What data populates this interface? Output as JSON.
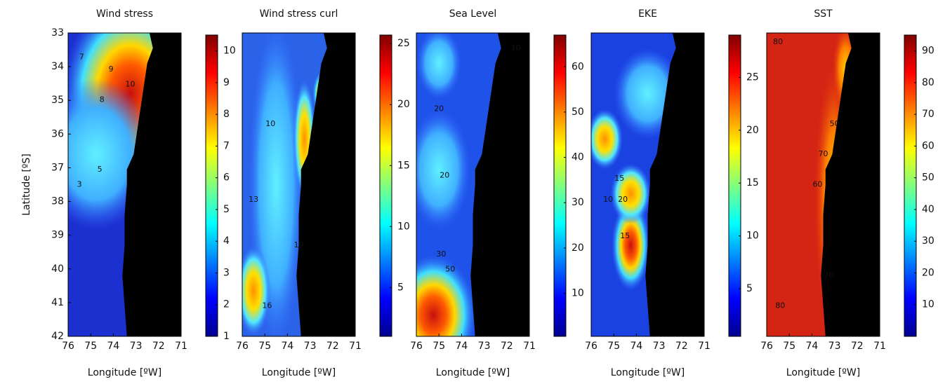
{
  "chart_data": [
    {
      "type": "map",
      "title": "Wind stress",
      "xlabel": "Longitude [ºW]",
      "ylabel": "Latitude [ºS]",
      "xlim": [
        76,
        71
      ],
      "xticks": [
        76,
        75,
        74,
        73,
        72,
        71
      ],
      "ylim": [
        42,
        33
      ],
      "yticks": [
        33,
        34,
        35,
        36,
        37,
        38,
        39,
        40,
        41,
        42
      ],
      "clim": [
        1,
        10.5
      ],
      "cticks": [
        1,
        2,
        3,
        4,
        5,
        6,
        7,
        8,
        9,
        10
      ],
      "colormap": "jet",
      "annotations": [
        "10",
        "9",
        "8",
        "7",
        "5",
        "3"
      ]
    },
    {
      "type": "map",
      "title": "Wind stress curl",
      "xlabel": "Longitude [ºW]",
      "xlim": [
        76,
        71
      ],
      "xticks": [
        76,
        75,
        74,
        73,
        72,
        71
      ],
      "clim": [
        1,
        25.7
      ],
      "cticks": [
        5,
        10,
        15,
        20,
        25
      ],
      "colormap": "jet",
      "annotations": [
        "13",
        "10",
        "16",
        "19"
      ]
    },
    {
      "type": "map",
      "title": "Sea Level",
      "xlabel": "Longitude [ºW]",
      "xlim": [
        76,
        71
      ],
      "xticks": [
        76,
        75,
        74,
        73,
        72,
        71
      ],
      "clim": [
        0.5,
        67
      ],
      "cticks": [
        10,
        20,
        30,
        40,
        50,
        60
      ],
      "colormap": "jet",
      "annotations": [
        "10",
        "20",
        "20",
        "30",
        "50"
      ]
    },
    {
      "type": "map",
      "title": "EKE",
      "xlabel": "Longitude [ºW]",
      "xlim": [
        76,
        71
      ],
      "xticks": [
        76,
        75,
        74,
        73,
        72,
        71
      ],
      "clim": [
        0.5,
        29
      ],
      "cticks": [
        5,
        10,
        15,
        20,
        25
      ],
      "colormap": "jet",
      "annotations": [
        "10",
        "15",
        "20",
        "15"
      ]
    },
    {
      "type": "map",
      "title": "SST",
      "xlabel": "Longitude [ºW]",
      "xlim": [
        76,
        71
      ],
      "xticks": [
        76,
        75,
        74,
        73,
        72,
        71
      ],
      "clim": [
        0,
        95
      ],
      "cticks": [
        10,
        20,
        30,
        40,
        50,
        60,
        70,
        80,
        90
      ],
      "colormap": "jet",
      "annotations": [
        "80",
        "70",
        "60",
        "50",
        "70",
        "80"
      ]
    }
  ]
}
